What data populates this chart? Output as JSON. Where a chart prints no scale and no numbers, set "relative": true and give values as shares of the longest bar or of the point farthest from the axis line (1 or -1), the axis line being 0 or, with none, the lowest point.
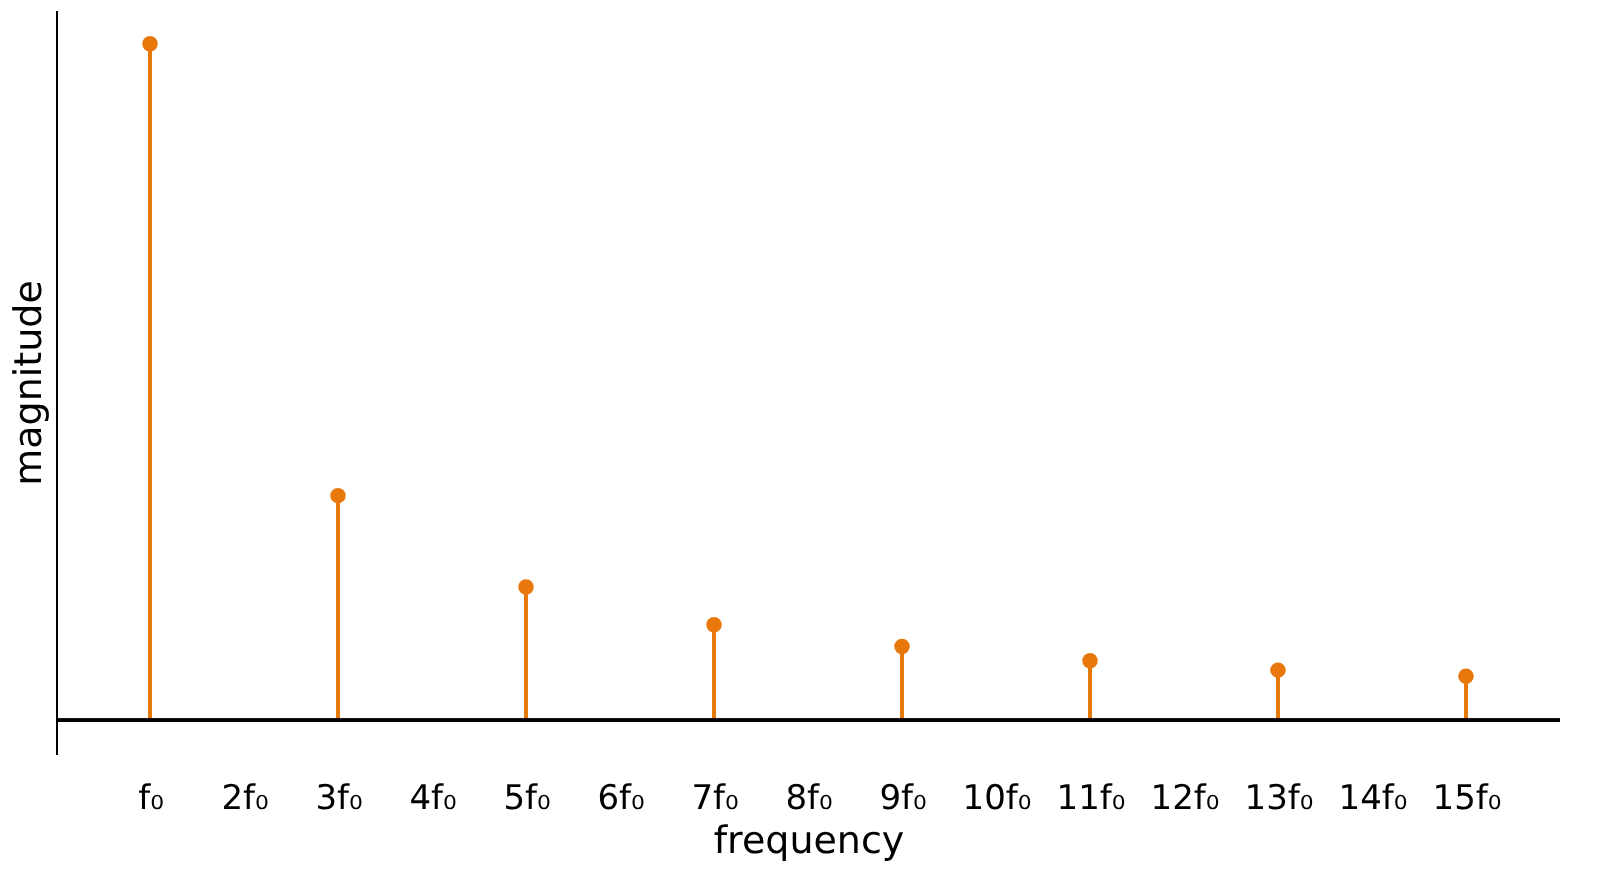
{
  "chart_data": {
    "type": "lollipop",
    "relative": true,
    "xlabel": "frequency",
    "ylabel": "magnitude",
    "categories": [
      "f₀",
      "2f₀",
      "3f₀",
      "4f₀",
      "5f₀",
      "6f₀",
      "7f₀",
      "8f₀",
      "9f₀",
      "10f₀",
      "11f₀",
      "12f₀",
      "13f₀",
      "14f₀",
      "15f₀"
    ],
    "values": [
      1,
      null,
      0.332,
      null,
      0.197,
      null,
      0.141,
      null,
      0.109,
      null,
      0.088,
      null,
      0.074,
      null,
      0.065
    ],
    "color": "#e8780c",
    "marker": "circle",
    "grid": false
  }
}
